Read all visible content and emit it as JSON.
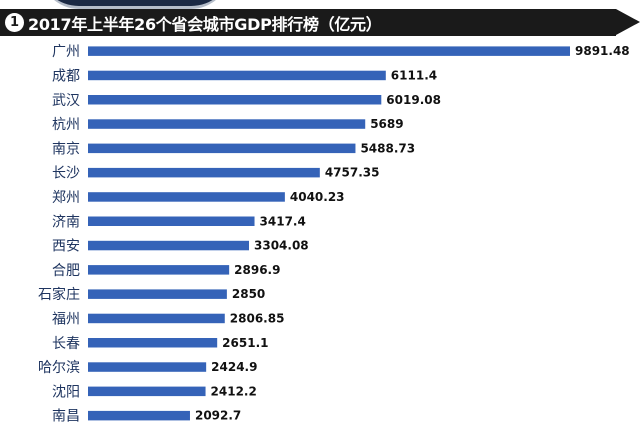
{
  "header": {
    "badge": "1",
    "title": "2017年上半年26个省会城市GDP排行榜（亿元）"
  },
  "colors": {
    "bar": "#3563b8",
    "title_bg": "#1a1a1a",
    "category_text": "#1f3560"
  },
  "chart_data": {
    "type": "bar",
    "orientation": "horizontal",
    "title": "2017年上半年26个省会城市GDP排行榜（亿元）",
    "categories": [
      "广州",
      "成都",
      "武汉",
      "杭州",
      "南京",
      "长沙",
      "郑州",
      "济南",
      "西安",
      "合肥",
      "石家庄",
      "福州",
      "长春",
      "哈尔滨",
      "沈阳",
      "南昌"
    ],
    "values": [
      9891.48,
      6111.4,
      6019.08,
      5689,
      5488.73,
      4757.35,
      4040.23,
      3417.4,
      3304.08,
      2896.9,
      2850,
      2806.85,
      2651.1,
      2424.9,
      2412.2,
      2092.7
    ],
    "value_labels": [
      "9891.48",
      "6111.4",
      "6019.08",
      "5689",
      "5488.73",
      "4757.35",
      "4040.23",
      "3417.4",
      "3304.08",
      "2896.9",
      "2850",
      "2806.85",
      "2651.1",
      "2424.9",
      "2412.2",
      "2092.7"
    ],
    "xlim": [
      0,
      9891.48
    ],
    "grid": false,
    "legend": "none"
  }
}
